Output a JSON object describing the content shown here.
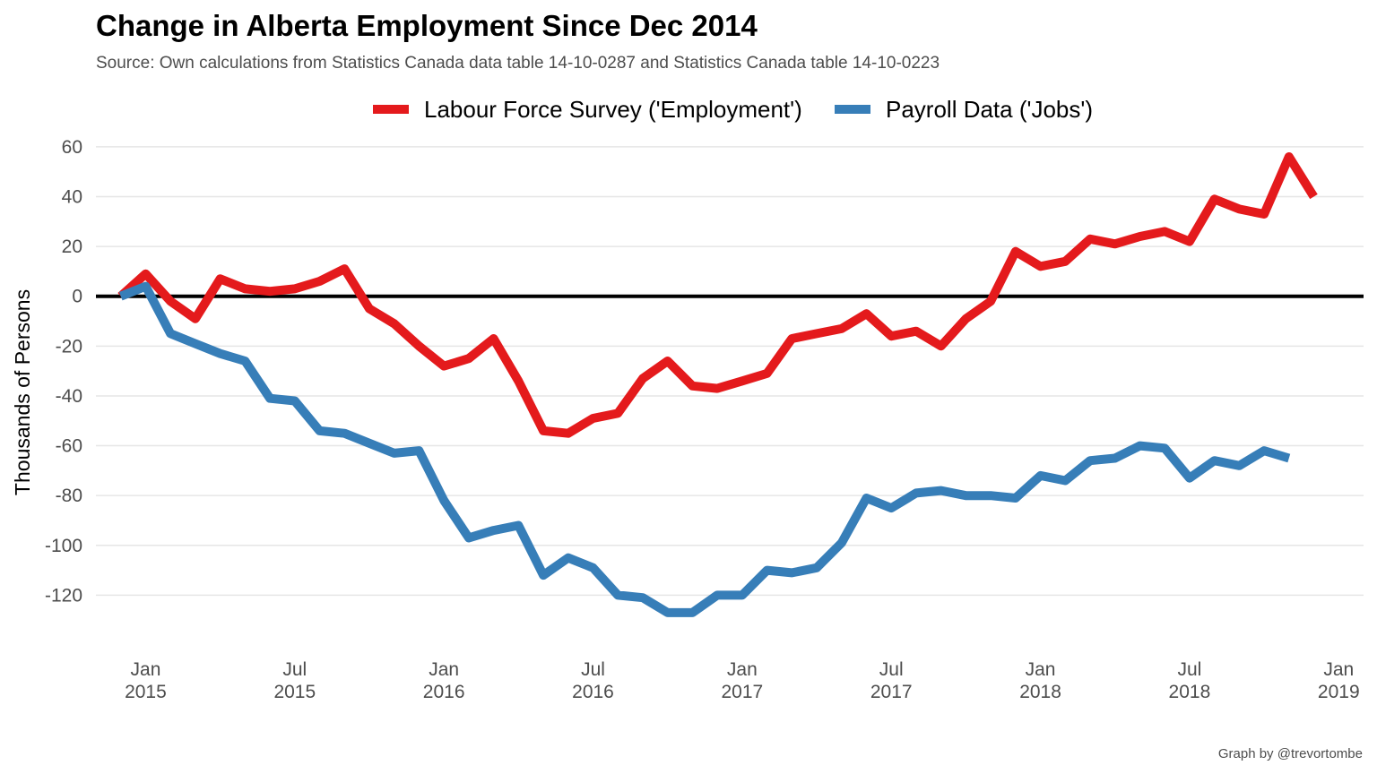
{
  "title": "Change in Alberta Employment Since Dec 2014",
  "subtitle": "Source: Own calculations from Statistics Canada data table 14-10-0287 and Statistics Canada table 14-10-0223",
  "caption": "Graph by @trevortombe",
  "chart_data": {
    "type": "line",
    "title": "Change in Alberta Employment Since Dec 2014",
    "xlabel": "",
    "ylabel": "Thousands of Persons",
    "ylim": [
      -140,
      65
    ],
    "yticks": [
      60,
      40,
      20,
      0,
      -20,
      -40,
      -60,
      -80,
      -100,
      -120
    ],
    "xlim": [
      "2014-11",
      "2019-02"
    ],
    "xticks": [
      {
        "date": "2015-01",
        "label": [
          "Jan",
          "2015"
        ]
      },
      {
        "date": "2015-07",
        "label": [
          "Jul",
          "2015"
        ]
      },
      {
        "date": "2016-01",
        "label": [
          "Jan",
          "2016"
        ]
      },
      {
        "date": "2016-07",
        "label": [
          "Jul",
          "2016"
        ]
      },
      {
        "date": "2017-01",
        "label": [
          "Jan",
          "2017"
        ]
      },
      {
        "date": "2017-07",
        "label": [
          "Jul",
          "2017"
        ]
      },
      {
        "date": "2018-01",
        "label": [
          "Jan",
          "2018"
        ]
      },
      {
        "date": "2018-07",
        "label": [
          "Jul",
          "2018"
        ]
      },
      {
        "date": "2019-01",
        "label": [
          "Jan",
          "2019"
        ]
      }
    ],
    "grid": true,
    "zero_line": true,
    "legend_position": "top",
    "series": [
      {
        "name": "Labour Force Survey ('Employment')",
        "color": "#e41a1c",
        "start": "2014-12",
        "values": [
          0,
          9,
          -2,
          -9,
          7,
          3,
          2,
          3,
          6,
          11,
          -5,
          -11,
          -20,
          -28,
          -25,
          -17,
          -34,
          -54,
          -55,
          -49,
          -47,
          -33,
          -26,
          -36,
          -37,
          -34,
          -31,
          -17,
          -15,
          -13,
          -7,
          -16,
          -14,
          -20,
          -9,
          -2,
          18,
          12,
          14,
          23,
          21,
          24,
          26,
          22,
          39,
          35,
          33,
          56,
          40
        ]
      },
      {
        "name": "Payroll Data ('Jobs')",
        "color": "#377eb8",
        "start": "2014-12",
        "values": [
          0,
          4,
          -15,
          -19,
          -23,
          -26,
          -41,
          -42,
          -54,
          -55,
          -59,
          -63,
          -62,
          -82,
          -97,
          -94,
          -92,
          -112,
          -105,
          -109,
          -120,
          -121,
          -127,
          -127,
          -120,
          -120,
          -110,
          -111,
          -109,
          -99,
          -81,
          -85,
          -79,
          -78,
          -80,
          -80,
          -81,
          -72,
          -74,
          -66,
          -65,
          -60,
          -61,
          -73,
          -66,
          -68,
          -62,
          -65
        ]
      }
    ]
  }
}
